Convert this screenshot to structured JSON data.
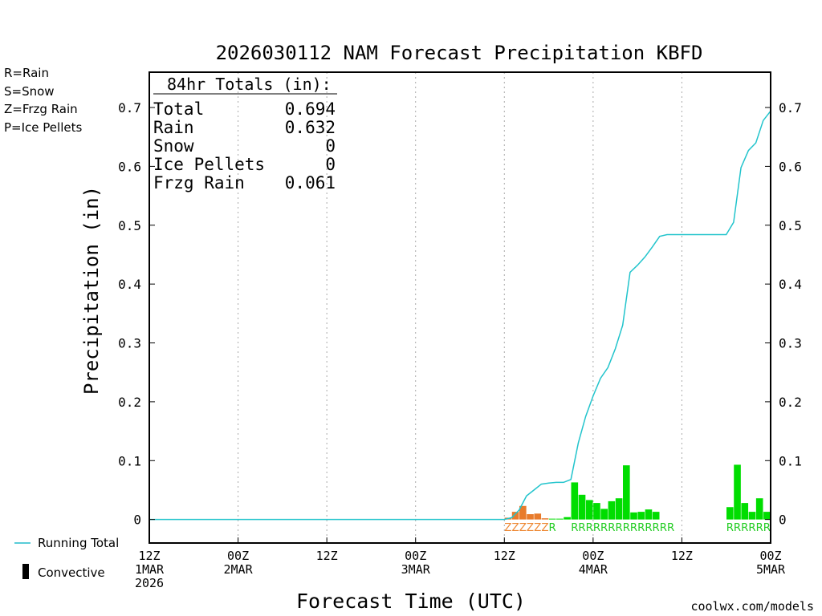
{
  "chart_data": {
    "type": "bar",
    "title": "2026030112 NAM Forecast Precipitation KBFD",
    "xlabel": "Forecast Time (UTC)",
    "ylabel": "Precipitation (in)",
    "x_unit": "forecast hour",
    "xlim": [
      0,
      84
    ],
    "ylim": [
      -0.04,
      0.76
    ],
    "y_ticks": [
      0,
      0.1,
      0.2,
      0.3,
      0.4,
      0.5,
      0.6,
      0.7
    ],
    "x_ticks": [
      {
        "hour": 0,
        "label": [
          "12Z",
          "1MAR",
          "2026"
        ]
      },
      {
        "hour": 12,
        "label": [
          "00Z",
          "2MAR"
        ]
      },
      {
        "hour": 24,
        "label": [
          "12Z"
        ]
      },
      {
        "hour": 36,
        "label": [
          "00Z",
          "3MAR"
        ]
      },
      {
        "hour": 48,
        "label": [
          "12Z"
        ]
      },
      {
        "hour": 60,
        "label": [
          "00Z",
          "4MAR"
        ]
      },
      {
        "hour": 72,
        "label": [
          "12Z"
        ]
      },
      {
        "hour": 84,
        "label": [
          "00Z",
          "5MAR"
        ]
      }
    ],
    "totals": {
      "heading": "84hr Totals (in):",
      "rows": [
        {
          "label": "Total",
          "value": "0.694"
        },
        {
          "label": "Rain",
          "value": "0.632"
        },
        {
          "label": "Snow",
          "value": "0"
        },
        {
          "label": "Ice Pellets",
          "value": "0"
        },
        {
          "label": "Frzg Rain",
          "value": "0.061"
        }
      ]
    },
    "type_legend": [
      {
        "text": "R=Rain",
        "color": "#22cc22"
      },
      {
        "text": "S=Snow",
        "color": "#3344ee"
      },
      {
        "text": "Z=Frzg Rain",
        "color": "#ee8833"
      },
      {
        "text": "P=Ice Pellets",
        "color": "#ee2299"
      }
    ],
    "series_legend": [
      {
        "name": "Running Total",
        "color": "#22bbcc"
      },
      {
        "name": "Convective",
        "color": "#000000"
      }
    ],
    "credit": "coolwx.com/models",
    "rain_color": "#00dd00",
    "frzg_color": "#e87b2c",
    "running_color": "#22c4cc",
    "bars": [
      {
        "hour": 48.5,
        "value": 0.003,
        "type": "Z"
      },
      {
        "hour": 49.5,
        "value": 0.013,
        "type": "Z"
      },
      {
        "hour": 50.5,
        "value": 0.023,
        "type": "Z"
      },
      {
        "hour": 51.5,
        "value": 0.009,
        "type": "Z"
      },
      {
        "hour": 52.5,
        "value": 0.01,
        "type": "Z"
      },
      {
        "hour": 53.5,
        "value": 0.002,
        "type": "Z"
      },
      {
        "hour": 54.5,
        "value": 0.001,
        "type": "R"
      },
      {
        "hour": 55.5,
        "value": 0.001,
        "type": "R"
      },
      {
        "hour": 56.5,
        "value": 0.004,
        "type": "R"
      },
      {
        "hour": 57.5,
        "value": 0.063,
        "type": "R"
      },
      {
        "hour": 58.5,
        "value": 0.042,
        "type": "R"
      },
      {
        "hour": 59.5,
        "value": 0.033,
        "type": "R"
      },
      {
        "hour": 60.5,
        "value": 0.028,
        "type": "R"
      },
      {
        "hour": 61.5,
        "value": 0.018,
        "type": "R"
      },
      {
        "hour": 62.5,
        "value": 0.031,
        "type": "R"
      },
      {
        "hour": 63.5,
        "value": 0.036,
        "type": "R"
      },
      {
        "hour": 64.5,
        "value": 0.092,
        "type": "R"
      },
      {
        "hour": 65.5,
        "value": 0.012,
        "type": "R"
      },
      {
        "hour": 66.5,
        "value": 0.013,
        "type": "R"
      },
      {
        "hour": 67.5,
        "value": 0.017,
        "type": "R"
      },
      {
        "hour": 68.5,
        "value": 0.013,
        "type": "R"
      },
      {
        "hour": 78.5,
        "value": 0.021,
        "type": "R"
      },
      {
        "hour": 79.5,
        "value": 0.093,
        "type": "R"
      },
      {
        "hour": 80.5,
        "value": 0.028,
        "type": "R"
      },
      {
        "hour": 81.5,
        "value": 0.013,
        "type": "R"
      },
      {
        "hour": 82.5,
        "value": 0.036,
        "type": "R"
      },
      {
        "hour": 83.5,
        "value": 0.013,
        "type": "R"
      }
    ],
    "running_total": {
      "hours": [
        0,
        48,
        49,
        50,
        51,
        52,
        53,
        54,
        55,
        56,
        57,
        58,
        59,
        60,
        61,
        62,
        63,
        64,
        65,
        66,
        67,
        68,
        69,
        70,
        78,
        79,
        80,
        81,
        82,
        83,
        84
      ],
      "values": [
        0,
        0,
        0.003,
        0.016,
        0.04,
        0.05,
        0.06,
        0.062,
        0.063,
        0.063,
        0.068,
        0.13,
        0.175,
        0.21,
        0.24,
        0.258,
        0.29,
        0.33,
        0.42,
        0.432,
        0.446,
        0.463,
        0.481,
        0.484,
        0.484,
        0.505,
        0.598,
        0.627,
        0.64,
        0.678,
        0.694
      ]
    },
    "type_label_runs": [
      {
        "text": "ZZZZZZ",
        "start_hour": 48.5,
        "color": "#ee8833"
      },
      {
        "text": "R",
        "start_hour": 54.5,
        "color": "#22cc22"
      },
      {
        "text": "RRRRRRRRRRRRRR",
        "start_hour": 57.5,
        "color": "#22cc22"
      },
      {
        "text": "RRRRRR",
        "start_hour": 78.5,
        "color": "#22cc22"
      }
    ]
  }
}
